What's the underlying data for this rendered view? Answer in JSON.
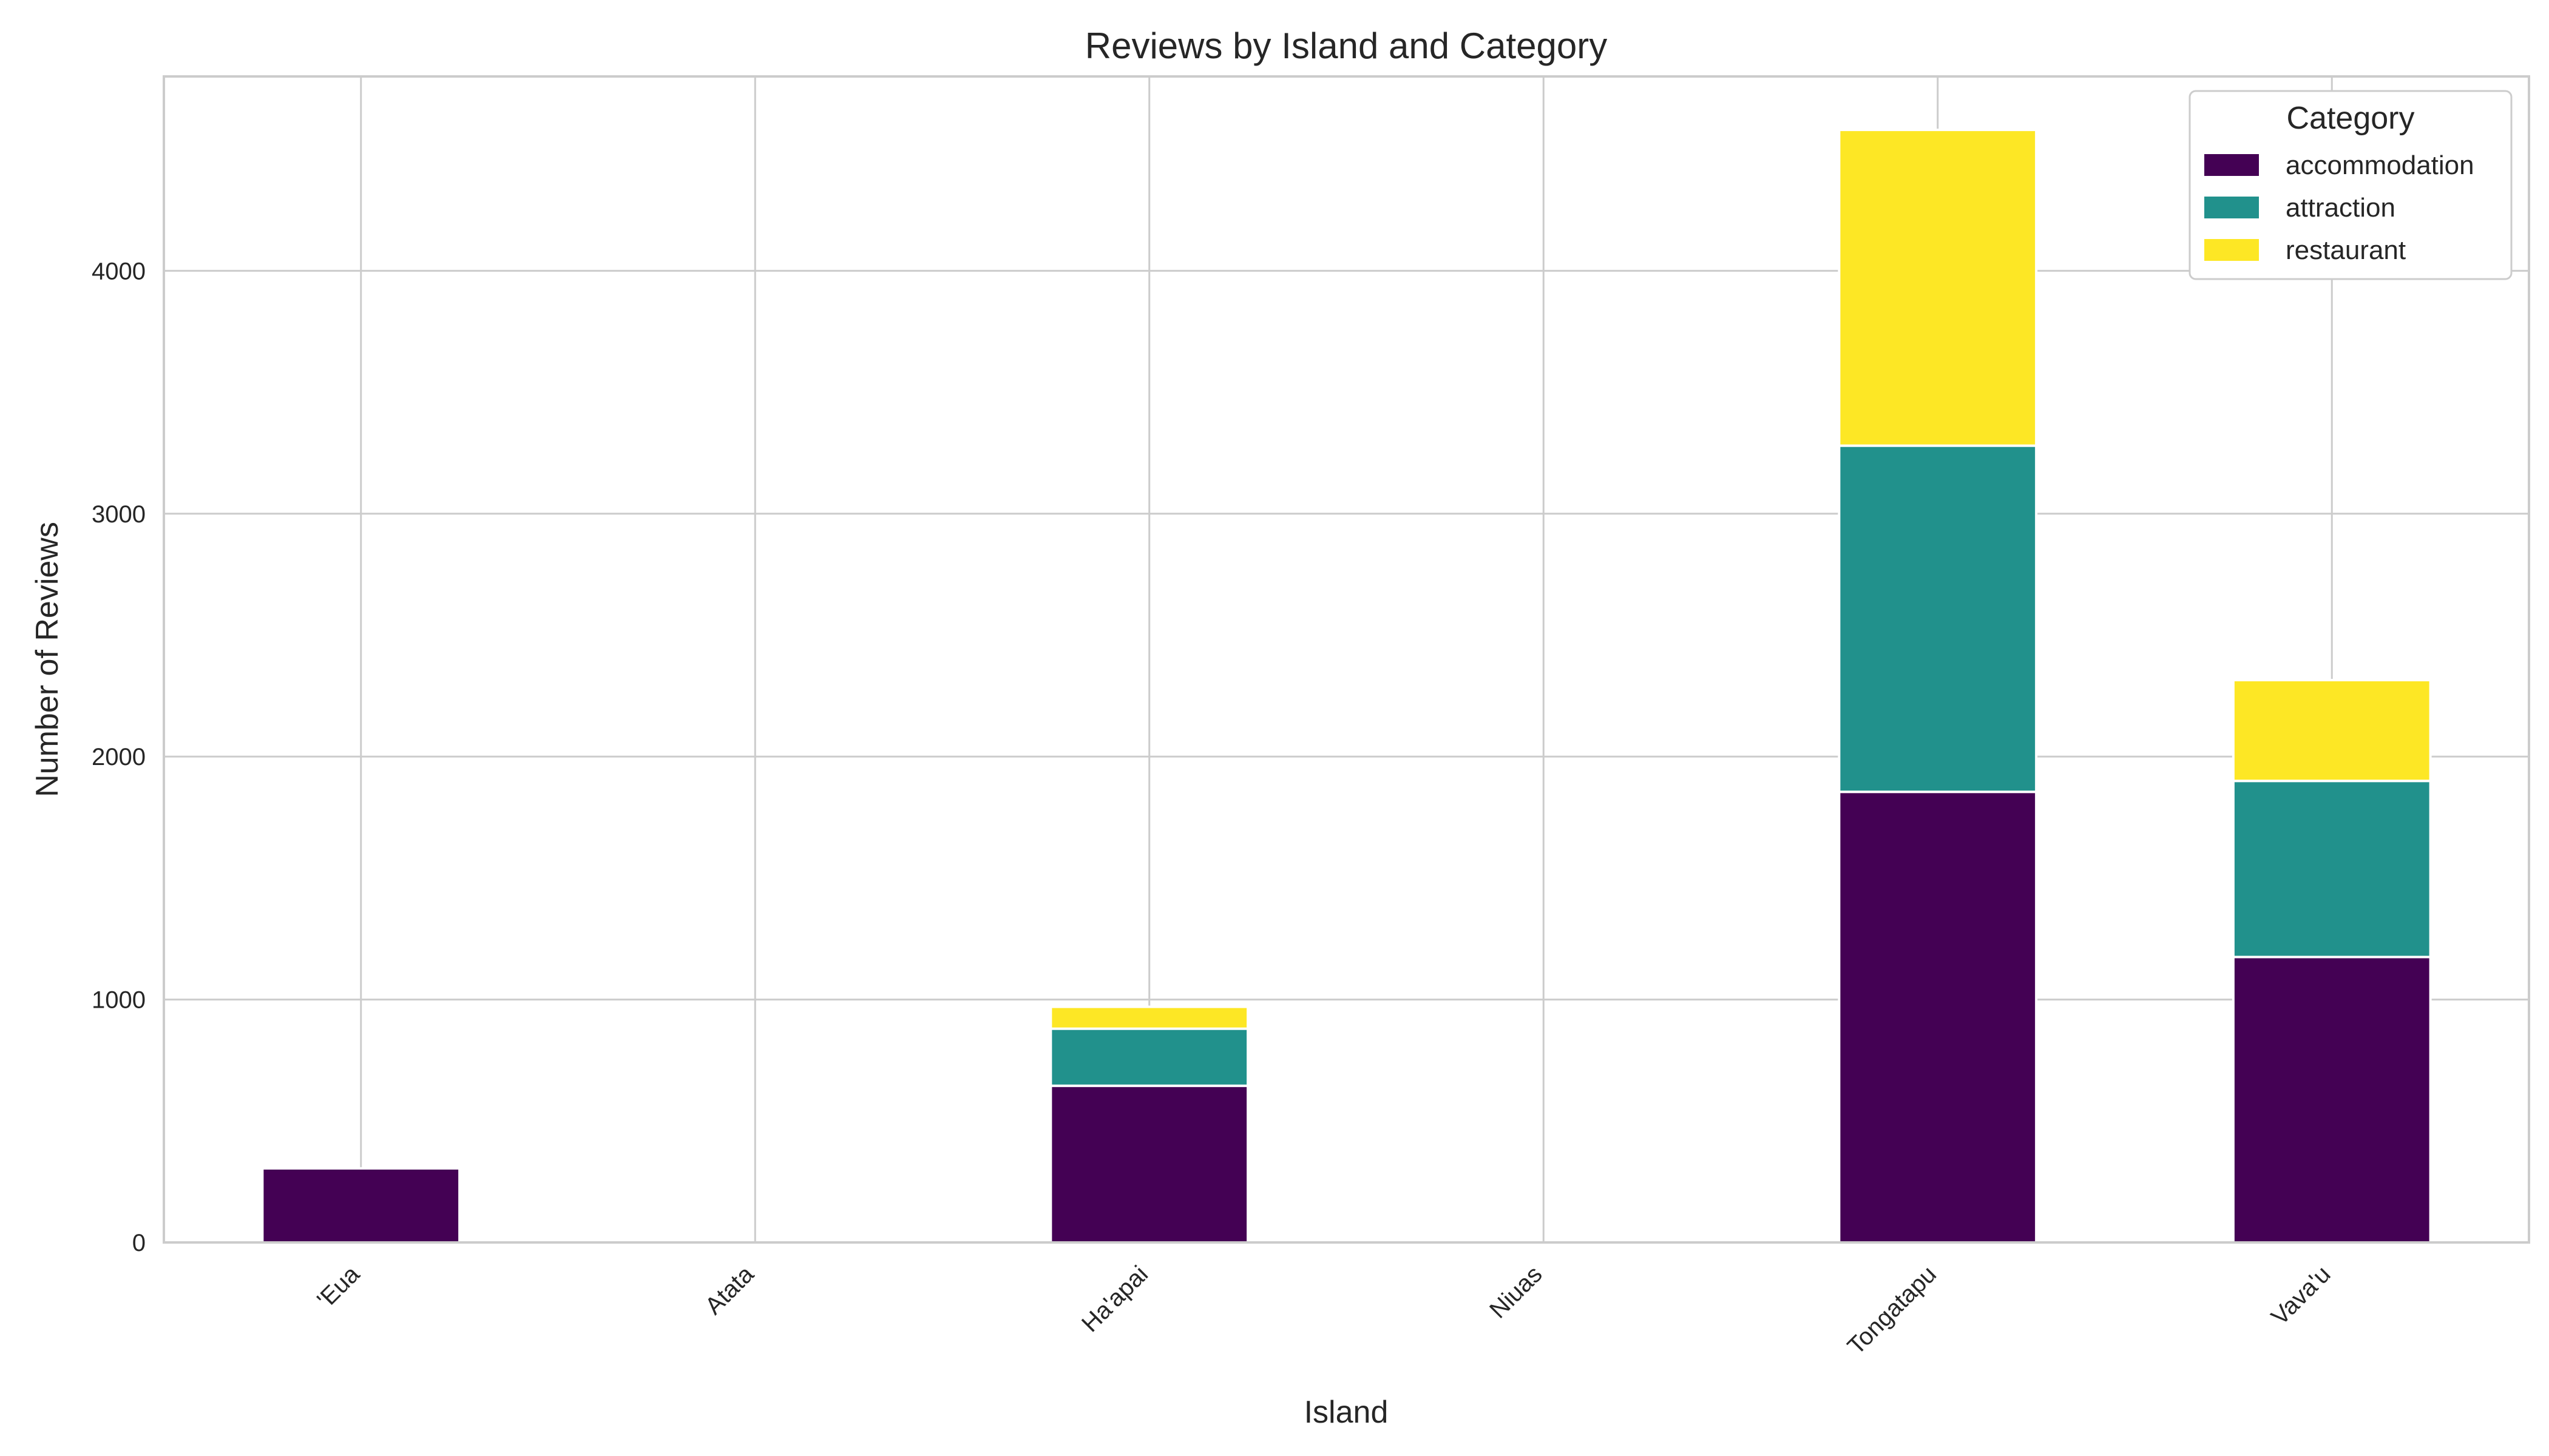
{
  "chart_data": {
    "type": "bar",
    "stacked": true,
    "title": "Reviews by Island and Category",
    "xlabel": "Island",
    "ylabel": "Number of Reviews",
    "categories": [
      "'Eua",
      "Atata",
      "Ha'apai",
      "Niuas",
      "Tongatapu",
      "Vava'u"
    ],
    "series": [
      {
        "name": "accommodation",
        "color": "#440154",
        "values": [
          305,
          0,
          645,
          0,
          1855,
          1175
        ]
      },
      {
        "name": "attraction",
        "color": "#21918c",
        "values": [
          0,
          0,
          235,
          0,
          1425,
          725
        ]
      },
      {
        "name": "restaurant",
        "color": "#fde725",
        "values": [
          0,
          0,
          90,
          0,
          1300,
          415
        ]
      }
    ],
    "ylim": [
      0,
      4800
    ],
    "yticks": [
      0,
      1000,
      2000,
      3000,
      4000
    ],
    "grid": true,
    "legend": {
      "title": "Category",
      "position": "top-right"
    }
  }
}
